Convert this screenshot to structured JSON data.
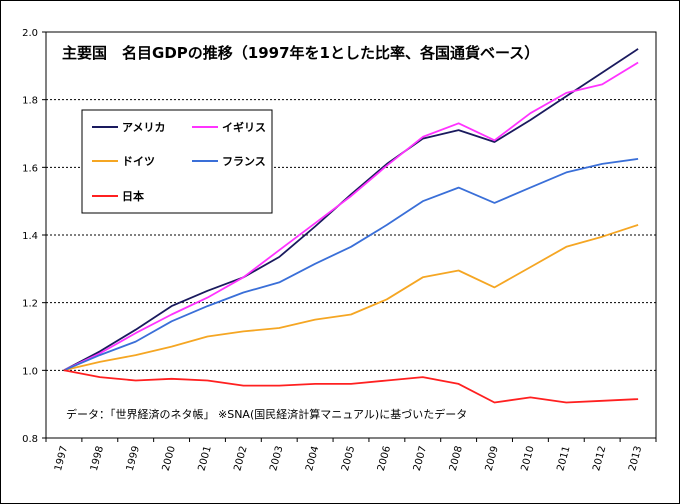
{
  "chart_data": {
    "type": "line",
    "title": "主要国　名目GDPの推移（1997年を1とした比率、各国通貨ベース）",
    "note": "データ：「世界経済のネタ帳」 ※SNA(国民経済計算マニュアル)に基づいたデータ",
    "x": [
      "1997",
      "1998",
      "1999",
      "2000",
      "2001",
      "2002",
      "2003",
      "2004",
      "2005",
      "2006",
      "2007",
      "2008",
      "2009",
      "2010",
      "2011",
      "2012",
      "2013"
    ],
    "yticks": [
      "2.0",
      "1.8",
      "1.6",
      "1.4",
      "1.2",
      "1.0",
      "0.8"
    ],
    "ylim": [
      0.8,
      2.0
    ],
    "grid": true,
    "legend_position": "top-left",
    "series": [
      {
        "name": "アメリカ",
        "color": "#1a1a5e",
        "values": [
          1.0,
          1.056,
          1.12,
          1.19,
          1.235,
          1.275,
          1.335,
          1.425,
          1.52,
          1.61,
          1.685,
          1.71,
          1.675,
          1.74,
          1.81,
          1.88,
          1.95
        ]
      },
      {
        "name": "イギリス",
        "color": "#ff33ff",
        "values": [
          1.0,
          1.05,
          1.11,
          1.165,
          1.215,
          1.275,
          1.355,
          1.435,
          1.515,
          1.605,
          1.69,
          1.73,
          1.68,
          1.76,
          1.82,
          1.845,
          1.91
        ]
      },
      {
        "name": "ドイツ",
        "color": "#f5a623",
        "values": [
          1.0,
          1.025,
          1.045,
          1.07,
          1.1,
          1.115,
          1.125,
          1.15,
          1.165,
          1.21,
          1.275,
          1.295,
          1.245,
          1.305,
          1.365,
          1.395,
          1.43
        ]
      },
      {
        "name": "フランス",
        "color": "#3a6fd8",
        "values": [
          1.0,
          1.045,
          1.085,
          1.145,
          1.19,
          1.23,
          1.26,
          1.315,
          1.365,
          1.43,
          1.5,
          1.54,
          1.495,
          1.54,
          1.585,
          1.61,
          1.625
        ]
      },
      {
        "name": "日本",
        "color": "#ff2020",
        "values": [
          1.0,
          0.98,
          0.97,
          0.975,
          0.97,
          0.955,
          0.955,
          0.96,
          0.96,
          0.97,
          0.98,
          0.96,
          0.905,
          0.92,
          0.905,
          0.91,
          0.915
        ]
      }
    ]
  }
}
